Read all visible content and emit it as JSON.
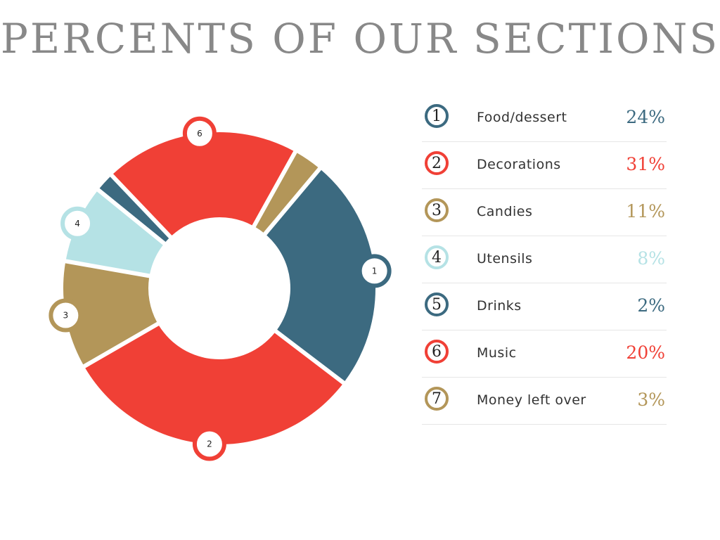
{
  "title": "PERCENTS OF OUR SECTIONS",
  "chart_data": {
    "type": "pie",
    "subtype": "donut",
    "title": "PERCENTS OF OUR SECTIONS",
    "categories": [
      "Food/dessert",
      "Decorations",
      "Candies",
      "Utensils",
      "Drinks",
      "Music",
      "Money left over"
    ],
    "values": [
      24,
      31,
      11,
      8,
      2,
      20,
      3
    ],
    "value_labels": [
      "24%",
      "31%",
      "11%",
      "8%",
      "2%",
      "20%",
      "3%"
    ],
    "numbers": [
      "1",
      "2",
      "3",
      "4",
      "5",
      "6",
      "7"
    ],
    "colors": [
      "#3c6a80",
      "#f04036",
      "#b39659",
      "#b5e2e5",
      "#3c6a80",
      "#f04036",
      "#b39659"
    ],
    "markers_shown_on_chart": [
      "1",
      "2",
      "3",
      "4",
      "6"
    ],
    "legend_position": "right"
  }
}
